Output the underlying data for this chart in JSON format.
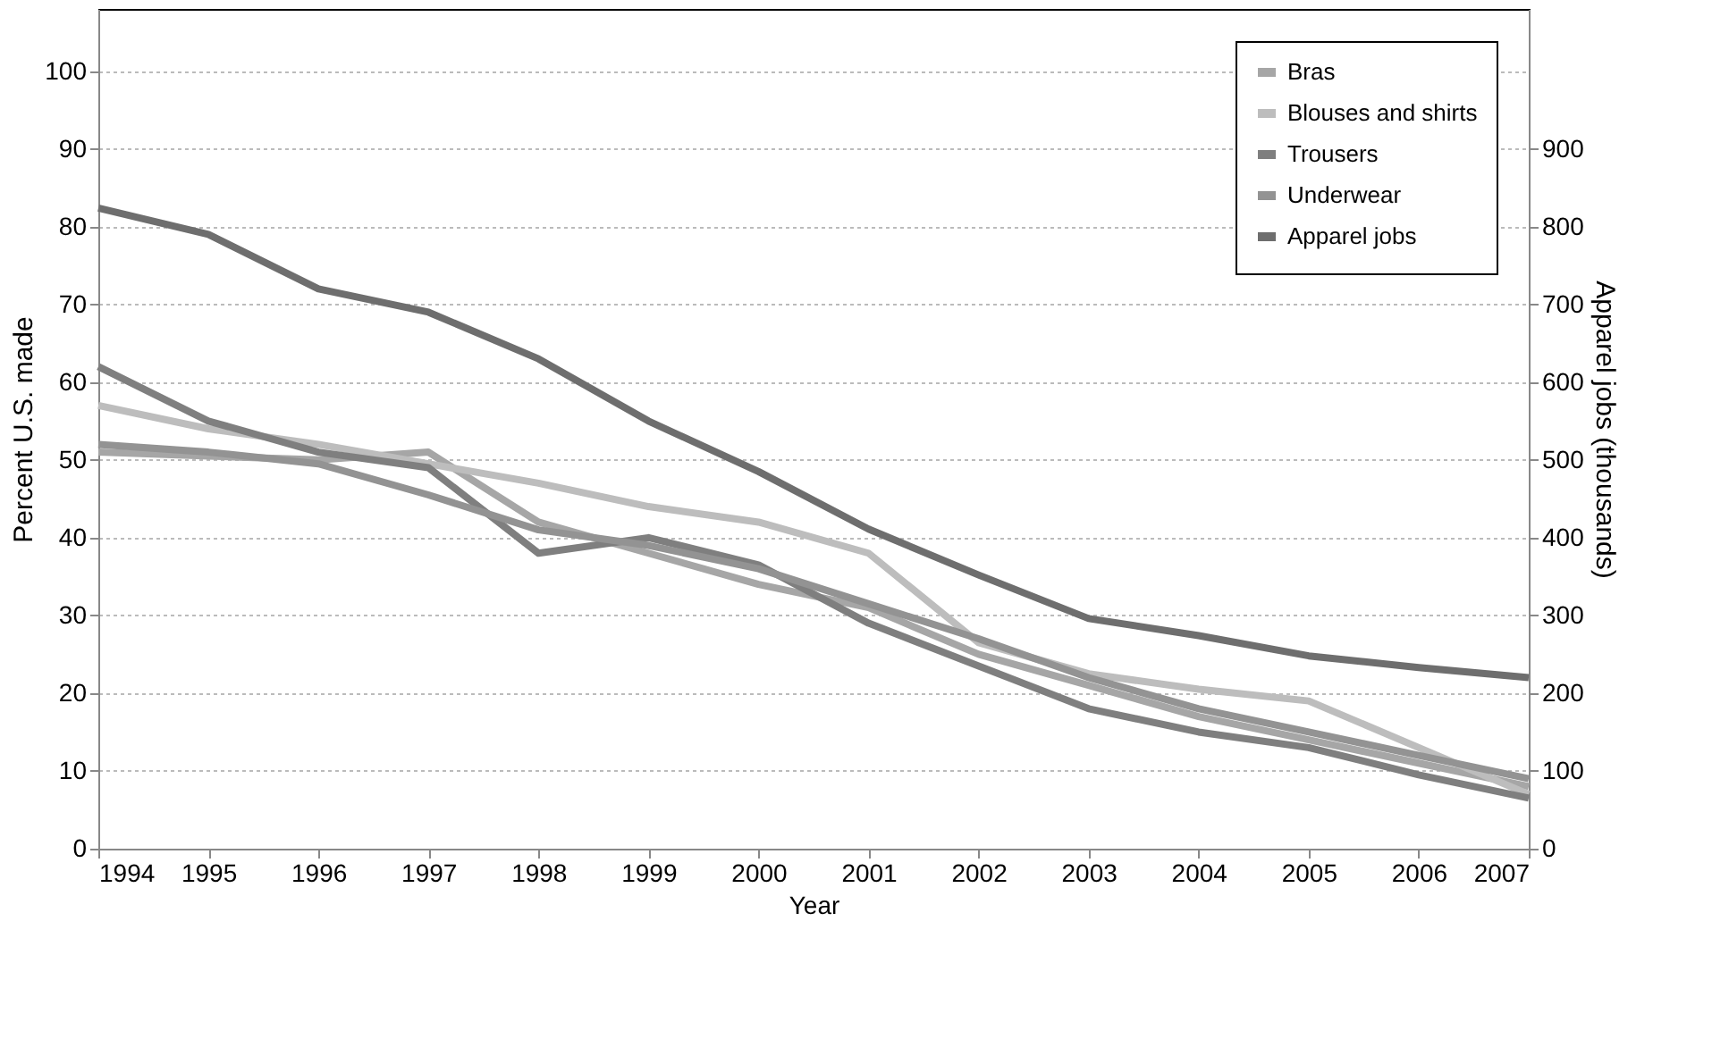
{
  "chart_data": {
    "type": "line",
    "xlabel": "Year",
    "ylabel": "Percent U.S. made",
    "y2label": "Apparel jobs (thousands)",
    "x": [
      1994,
      1995,
      1996,
      1997,
      1998,
      1999,
      2000,
      2001,
      2002,
      2003,
      2004,
      2005,
      2006,
      2007
    ],
    "series": [
      {
        "name": "Bras",
        "color": "#a6a6a6",
        "values": [
          51,
          50.5,
          50,
          51,
          42,
          38,
          34,
          31,
          25,
          21,
          17,
          14,
          11,
          8
        ]
      },
      {
        "name": "Blouses and shirts",
        "color": "#bdbdbd",
        "values": [
          57,
          54,
          52,
          49.5,
          47,
          44,
          42,
          38,
          26.5,
          22.5,
          20.5,
          19,
          13,
          7
        ]
      },
      {
        "name": "Trousers",
        "color": "#7f7f7f",
        "values": [
          62,
          55,
          51,
          49,
          38,
          40,
          36.5,
          29,
          23.5,
          18,
          15,
          13,
          9.5,
          6.5
        ]
      },
      {
        "name": "Underwear",
        "color": "#939393",
        "values": [
          52,
          51,
          49.5,
          45.5,
          41,
          39,
          36,
          31.5,
          27,
          22,
          18,
          15,
          12,
          9
        ]
      },
      {
        "name": "Apparel jobs",
        "color": "#6e6e6e",
        "axis": "y2",
        "values": [
          824,
          790,
          720,
          690,
          630,
          550,
          485,
          411,
          352,
          296,
          274,
          248,
          233,
          220
        ]
      }
    ],
    "xlim": [
      1994,
      2007
    ],
    "xticks": [
      1994,
      1995,
      1996,
      1997,
      1998,
      1999,
      2000,
      2001,
      2002,
      2003,
      2004,
      2005,
      2006,
      2007
    ],
    "ylim": [
      0,
      108
    ],
    "yticks": [
      0,
      10,
      20,
      30,
      40,
      50,
      60,
      70,
      80,
      90,
      100
    ],
    "y2lim": [
      0,
      1080
    ],
    "y2ticks": [
      0,
      100,
      200,
      300,
      400,
      500,
      600,
      700,
      800,
      900
    ],
    "grid": "y",
    "legend": "top right",
    "line_style": "solid",
    "marker": "none"
  }
}
